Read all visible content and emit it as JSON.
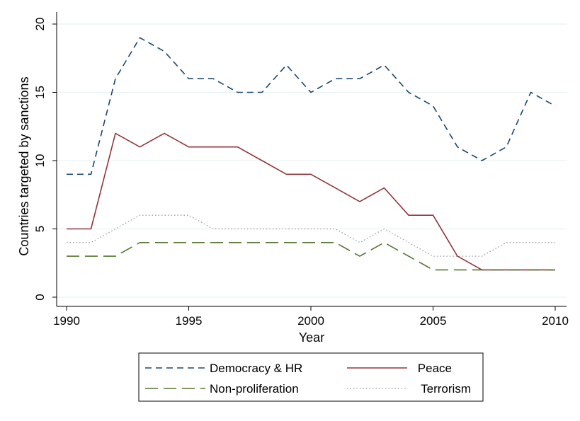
{
  "chart_data": {
    "type": "line",
    "title": "",
    "xlabel": "Year",
    "ylabel": "Countries targeted by sanctions",
    "xlim": [
      1990,
      2010
    ],
    "ylim": [
      0,
      20
    ],
    "xticks": [
      1990,
      1995,
      2000,
      2005,
      2010
    ],
    "yticks": [
      0,
      5,
      10,
      15,
      20
    ],
    "grid": true,
    "legend_position": "bottom",
    "x": [
      1990,
      1991,
      1992,
      1993,
      1994,
      1995,
      1996,
      1997,
      1998,
      1999,
      2000,
      2001,
      2002,
      2003,
      2004,
      2005,
      2006,
      2007,
      2008,
      2009,
      2010
    ],
    "series": [
      {
        "name": "Democracy & HR",
        "color": "#1a476f",
        "dash": "short-dash",
        "values": [
          9,
          9,
          16,
          19,
          18,
          16,
          16,
          15,
          15,
          17,
          15,
          16,
          16,
          17,
          15,
          14,
          11,
          10,
          11,
          15,
          14
        ]
      },
      {
        "name": "Peace",
        "color": "#90353b",
        "dash": "solid",
        "values": [
          5,
          5,
          12,
          11,
          12,
          11,
          11,
          11,
          10,
          9,
          9,
          8,
          7,
          8,
          6,
          6,
          3,
          2,
          2,
          2,
          2
        ]
      },
      {
        "name": "Non-proliferation",
        "color": "#55752f",
        "dash": "long-dash",
        "values": [
          3,
          3,
          3,
          4,
          4,
          4,
          4,
          4,
          4,
          4,
          4,
          4,
          3,
          4,
          3,
          2,
          2,
          2,
          2,
          2,
          2
        ]
      },
      {
        "name": "Terrorism",
        "color": "#999999",
        "dash": "dotted",
        "values": [
          4,
          4,
          5,
          6,
          6,
          6,
          5,
          5,
          5,
          5,
          5,
          5,
          4,
          5,
          4,
          3,
          3,
          3,
          4,
          4,
          4
        ]
      }
    ]
  }
}
